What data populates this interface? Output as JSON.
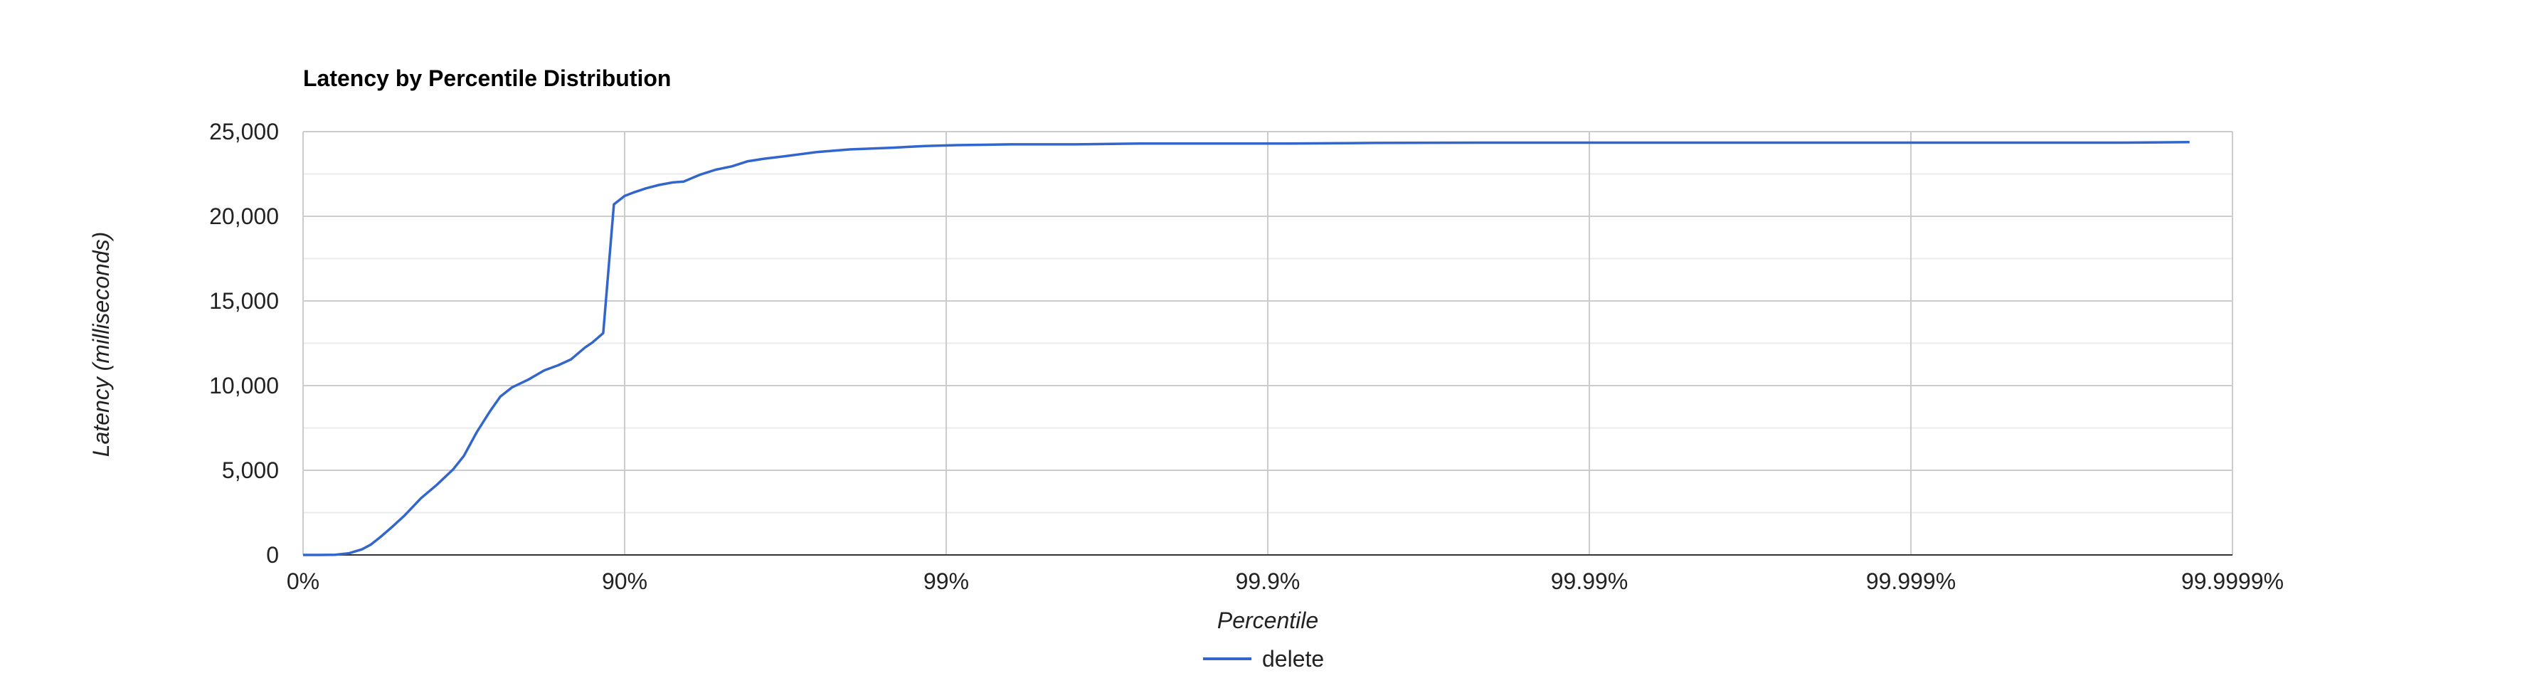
{
  "chart_data": {
    "type": "line",
    "title": "Latency by Percentile Distribution",
    "xlabel": "Percentile",
    "ylabel": "Latency (milliseconds)",
    "x_scale": "percentile-log",
    "x_ticks": [
      "0%",
      "90%",
      "99%",
      "99.9%",
      "99.99%",
      "99.999%",
      "99.9999%"
    ],
    "y_ticks": [
      "0",
      "5,000",
      "10,000",
      "15,000",
      "20,000",
      "25,000"
    ],
    "ylim": [
      0,
      25000
    ],
    "grid": true,
    "legend_position": "bottom",
    "series": [
      {
        "name": "delete",
        "color": "#3366cc",
        "points": [
          [
            0,
            0
          ],
          [
            0.15,
            0
          ],
          [
            0.3,
            10
          ],
          [
            0.43,
            100
          ],
          [
            0.55,
            330
          ],
          [
            0.63,
            600
          ],
          [
            0.72,
            1050
          ],
          [
            0.83,
            1650
          ],
          [
            0.95,
            2350
          ],
          [
            1.1,
            3350
          ],
          [
            1.25,
            4150
          ],
          [
            1.4,
            5050
          ],
          [
            1.5,
            5850
          ],
          [
            1.62,
            7250
          ],
          [
            1.74,
            8450
          ],
          [
            1.84,
            9350
          ],
          [
            1.95,
            9900
          ],
          [
            2.1,
            10350
          ],
          [
            2.25,
            10900
          ],
          [
            2.38,
            11200
          ],
          [
            2.5,
            11550
          ],
          [
            2.63,
            12250
          ],
          [
            2.7,
            12550
          ],
          [
            2.8,
            13100
          ],
          [
            2.9,
            20700
          ],
          [
            3.0,
            21200
          ],
          [
            3.08,
            21400
          ],
          [
            3.2,
            21650
          ],
          [
            3.32,
            21850
          ],
          [
            3.45,
            22000
          ],
          [
            3.55,
            22050
          ],
          [
            3.7,
            22450
          ],
          [
            3.85,
            22750
          ],
          [
            4.0,
            22950
          ],
          [
            4.15,
            23250
          ],
          [
            4.3,
            23400
          ],
          [
            4.5,
            23550
          ],
          [
            4.8,
            23800
          ],
          [
            5.1,
            23950
          ],
          [
            5.5,
            24050
          ],
          [
            5.8,
            24150
          ],
          [
            6.1,
            24200
          ],
          [
            6.6,
            24250
          ],
          [
            7.2,
            24250
          ],
          [
            7.8,
            24300
          ],
          [
            8.5,
            24300
          ],
          [
            9.2,
            24300
          ],
          [
            10.0,
            24330
          ],
          [
            11.0,
            24350
          ],
          [
            12.0,
            24350
          ],
          [
            13.0,
            24350
          ],
          [
            14.0,
            24350
          ],
          [
            15.0,
            24350
          ],
          [
            16.0,
            24350
          ],
          [
            17.0,
            24350
          ],
          [
            17.6,
            24380
          ]
        ]
      }
    ]
  }
}
